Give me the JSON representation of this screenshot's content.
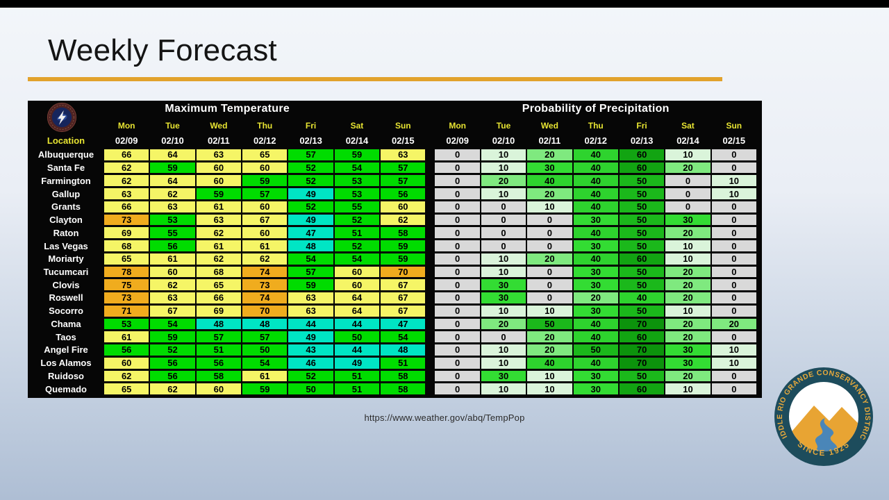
{
  "slide": {
    "source_url": "https://www.weather.gov/abq/TempPop"
  },
  "chart_data": {
    "type": "table",
    "title": "Weekly Forecast",
    "sections": {
      "temperature": "Maximum Temperature",
      "precipitation": "Probability of Precipitation"
    },
    "location_header": "Location",
    "days": [
      "Mon",
      "Tue",
      "Wed",
      "Thu",
      "Fri",
      "Sat",
      "Sun"
    ],
    "dates": [
      "02/09",
      "02/10",
      "02/11",
      "02/12",
      "02/13",
      "02/14",
      "02/15"
    ],
    "rows": [
      {
        "location": "Albuquerque",
        "max_temp": [
          66,
          64,
          63,
          65,
          57,
          59,
          63
        ],
        "pop_percent": [
          0,
          10,
          20,
          40,
          60,
          10,
          0
        ]
      },
      {
        "location": "Santa Fe",
        "max_temp": [
          62,
          59,
          60,
          60,
          52,
          54,
          57
        ],
        "pop_percent": [
          0,
          10,
          30,
          40,
          60,
          20,
          0
        ]
      },
      {
        "location": "Farmington",
        "max_temp": [
          62,
          64,
          60,
          59,
          52,
          53,
          57
        ],
        "pop_percent": [
          0,
          20,
          40,
          40,
          50,
          0,
          10
        ]
      },
      {
        "location": "Gallup",
        "max_temp": [
          63,
          62,
          59,
          57,
          49,
          53,
          56
        ],
        "pop_percent": [
          0,
          10,
          20,
          40,
          50,
          0,
          10
        ]
      },
      {
        "location": "Grants",
        "max_temp": [
          66,
          63,
          61,
          60,
          52,
          55,
          60
        ],
        "pop_percent": [
          0,
          0,
          10,
          40,
          50,
          0,
          0
        ]
      },
      {
        "location": "Clayton",
        "max_temp": [
          73,
          53,
          63,
          67,
          49,
          52,
          62
        ],
        "pop_percent": [
          0,
          0,
          0,
          30,
          50,
          30,
          0
        ]
      },
      {
        "location": "Raton",
        "max_temp": [
          69,
          55,
          62,
          60,
          47,
          51,
          58
        ],
        "pop_percent": [
          0,
          0,
          0,
          40,
          50,
          20,
          0
        ]
      },
      {
        "location": "Las Vegas",
        "max_temp": [
          68,
          56,
          61,
          61,
          48,
          52,
          59
        ],
        "pop_percent": [
          0,
          0,
          0,
          30,
          50,
          10,
          0
        ]
      },
      {
        "location": "Moriarty",
        "max_temp": [
          65,
          61,
          62,
          62,
          54,
          54,
          59
        ],
        "pop_percent": [
          0,
          10,
          20,
          40,
          60,
          10,
          0
        ]
      },
      {
        "location": "Tucumcari",
        "max_temp": [
          78,
          60,
          68,
          74,
          57,
          60,
          70
        ],
        "pop_percent": [
          0,
          10,
          0,
          30,
          50,
          20,
          0
        ]
      },
      {
        "location": "Clovis",
        "max_temp": [
          75,
          62,
          65,
          73,
          59,
          60,
          67
        ],
        "pop_percent": [
          0,
          30,
          0,
          30,
          50,
          20,
          0
        ]
      },
      {
        "location": "Roswell",
        "max_temp": [
          73,
          63,
          66,
          74,
          63,
          64,
          67
        ],
        "pop_percent": [
          0,
          30,
          0,
          20,
          40,
          20,
          0
        ]
      },
      {
        "location": "Socorro",
        "max_temp": [
          71,
          67,
          69,
          70,
          63,
          64,
          67
        ],
        "pop_percent": [
          0,
          10,
          10,
          30,
          50,
          10,
          0
        ]
      },
      {
        "location": "Chama",
        "max_temp": [
          53,
          54,
          48,
          48,
          44,
          44,
          47
        ],
        "pop_percent": [
          0,
          20,
          50,
          40,
          70,
          20,
          20
        ]
      },
      {
        "location": "Taos",
        "max_temp": [
          61,
          59,
          57,
          57,
          49,
          50,
          54
        ],
        "pop_percent": [
          0,
          0,
          20,
          40,
          60,
          20,
          0
        ]
      },
      {
        "location": "Angel Fire",
        "max_temp": [
          56,
          52,
          51,
          50,
          43,
          44,
          48
        ],
        "pop_percent": [
          0,
          10,
          20,
          50,
          70,
          30,
          10
        ]
      },
      {
        "location": "Los Alamos",
        "max_temp": [
          60,
          56,
          56,
          54,
          46,
          49,
          51
        ],
        "pop_percent": [
          0,
          10,
          40,
          40,
          70,
          30,
          10
        ]
      },
      {
        "location": "Ruidoso",
        "max_temp": [
          62,
          56,
          58,
          61,
          52,
          51,
          58
        ],
        "pop_percent": [
          0,
          30,
          10,
          30,
          50,
          20,
          0
        ]
      },
      {
        "location": "Quemado",
        "max_temp": [
          65,
          62,
          60,
          59,
          50,
          51,
          58
        ],
        "pop_percent": [
          0,
          10,
          10,
          30,
          60,
          10,
          0
        ]
      }
    ],
    "color_encoding": {
      "temp_below_50": "#00E5C4",
      "temp_50s": "#00DC00",
      "temp_60s": "#F5F566",
      "temp_70s": "#F0AC1E",
      "pop": {
        "0": "#D9D9D9",
        "10": "#DAF4DA",
        "20": "#7FE97F",
        "30": "#33DC33",
        "40": "#2ED32E",
        "50": "#1BB81B",
        "60": "#12A412",
        "70": "#0C930C"
      }
    }
  },
  "colors": {
    "accent_underline": "#E2A22C"
  },
  "logos": {
    "nws": "National Weather Service",
    "mrgcd_ring": "MIDDLE RIO GRANDE CONSERVANCY DISTRICT",
    "mrgcd_since": "SINCE 1925"
  }
}
